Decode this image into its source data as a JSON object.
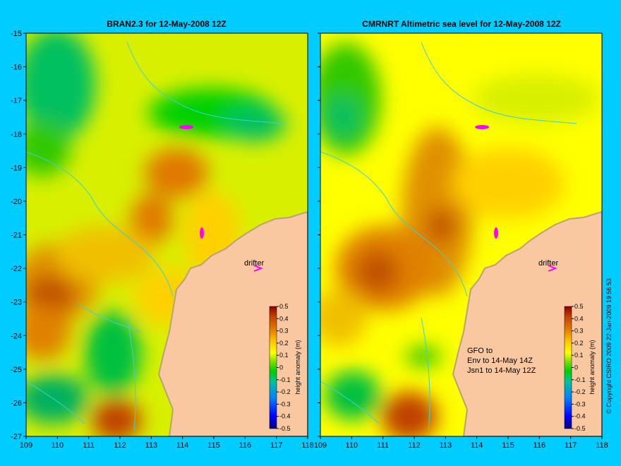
{
  "chart_data": [
    {
      "type": "heatmap",
      "title": "BRAN2.3 for 12-May-2008 12Z",
      "xlim": [
        109,
        118
      ],
      "ylim": [
        -27,
        -15
      ],
      "x_ticks": [
        "109",
        "110",
        "111",
        "112",
        "113",
        "114",
        "115",
        "116",
        "117",
        "118"
      ],
      "y_ticks": [
        "-15",
        "-16",
        "-17",
        "-18",
        "-19",
        "-20",
        "-21",
        "-22",
        "-23",
        "-24",
        "-25",
        "-26",
        "-27"
      ],
      "drifter_label": "drifter",
      "colorbar": {
        "label": "height anomaly (m)",
        "ticks": [
          "0.5",
          "0.4",
          "0.3",
          "0.2",
          "0.1",
          "0",
          "-0.1",
          "-0.2",
          "-0.3",
          "-0.4",
          "-0.5"
        ]
      }
    },
    {
      "type": "heatmap",
      "title": "CMRNRT Altimetric sea level  for 12-May-2008 12Z",
      "xlim": [
        109,
        118
      ],
      "ylim": [
        -27,
        -15
      ],
      "x_ticks": [
        "109",
        "110",
        "111",
        "112",
        "113",
        "114",
        "115",
        "116",
        "117",
        "118"
      ],
      "drifter_label": "drifter",
      "annotation": [
        "GFO to",
        "Env to 14-May 14Z",
        "Jsn1 to 14-May 12Z"
      ],
      "colorbar": {
        "label": "height anomaly (m)",
        "ticks": [
          "0.5",
          "0.4",
          "0.3",
          "0.2",
          "0.1",
          "0",
          "-0.1",
          "-0.2",
          "-0.3",
          "-0.4",
          "-0.5"
        ]
      }
    }
  ],
  "copyright": "© Copyright CSIRO 2009  22-Jan-2009 19:56:53",
  "colors": {
    "background": "#00ccff",
    "land": "#f9c8a0",
    "coast": "#b8a080",
    "contour": "#40d0d0",
    "drifter": "#ff00ff",
    "scale": [
      "#00007f",
      "#0000ff",
      "#0080ff",
      "#00c0c0",
      "#00c060",
      "#00d800",
      "#80e000",
      "#d8f000",
      "#ffff00",
      "#ffd000",
      "#f0a000",
      "#e07800",
      "#c05000",
      "#8f0000"
    ]
  }
}
